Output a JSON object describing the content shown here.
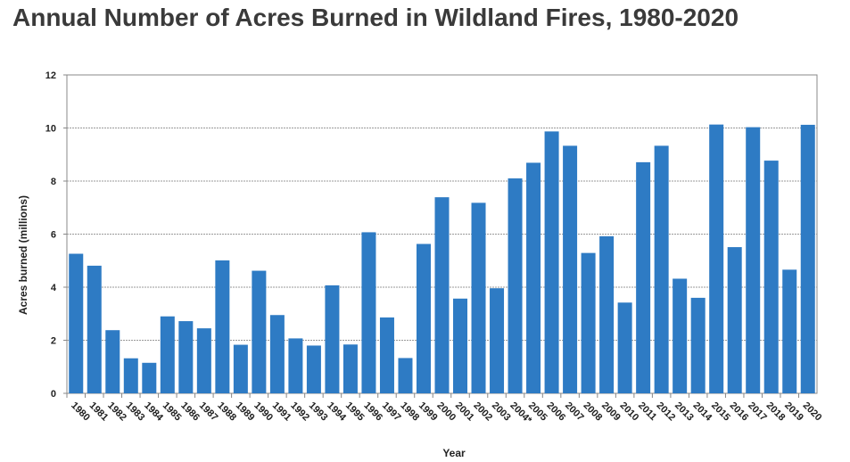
{
  "chart_data": {
    "type": "bar",
    "title": "Annual Number of Acres Burned in Wildland Fires, 1980-2020",
    "xlabel": "Year",
    "ylabel": "Acres burned (millions)",
    "ylim": [
      0,
      12
    ],
    "yticks": [
      "0",
      "2",
      "4",
      "6",
      "8",
      "10",
      "12"
    ],
    "grid": true,
    "bar_color": "#2e7bc4",
    "categories": [
      "1980",
      "1981",
      "1982",
      "1983",
      "1984",
      "1985",
      "1986",
      "1987",
      "1988",
      "1989",
      "1990",
      "1991",
      "1992",
      "1993",
      "1994",
      "1995",
      "1996",
      "1997",
      "1998",
      "1999",
      "2000",
      "2001",
      "2002",
      "2003",
      "2004*",
      "2005",
      "2006",
      "2007",
      "2008",
      "2009",
      "2010",
      "2011",
      "2012",
      "2013",
      "2014",
      "2015",
      "2016",
      "2017",
      "2018",
      "2019",
      "2020"
    ],
    "values": [
      5.26,
      4.81,
      2.38,
      1.32,
      1.15,
      2.9,
      2.72,
      2.45,
      5.01,
      1.83,
      4.62,
      2.95,
      2.07,
      1.8,
      4.07,
      1.84,
      6.07,
      2.86,
      1.33,
      5.63,
      7.39,
      3.57,
      7.18,
      3.96,
      8.1,
      8.69,
      9.87,
      9.33,
      5.29,
      5.92,
      3.42,
      8.71,
      9.33,
      4.32,
      3.6,
      10.13,
      5.51,
      10.03,
      8.77,
      4.66,
      10.12
    ]
  }
}
